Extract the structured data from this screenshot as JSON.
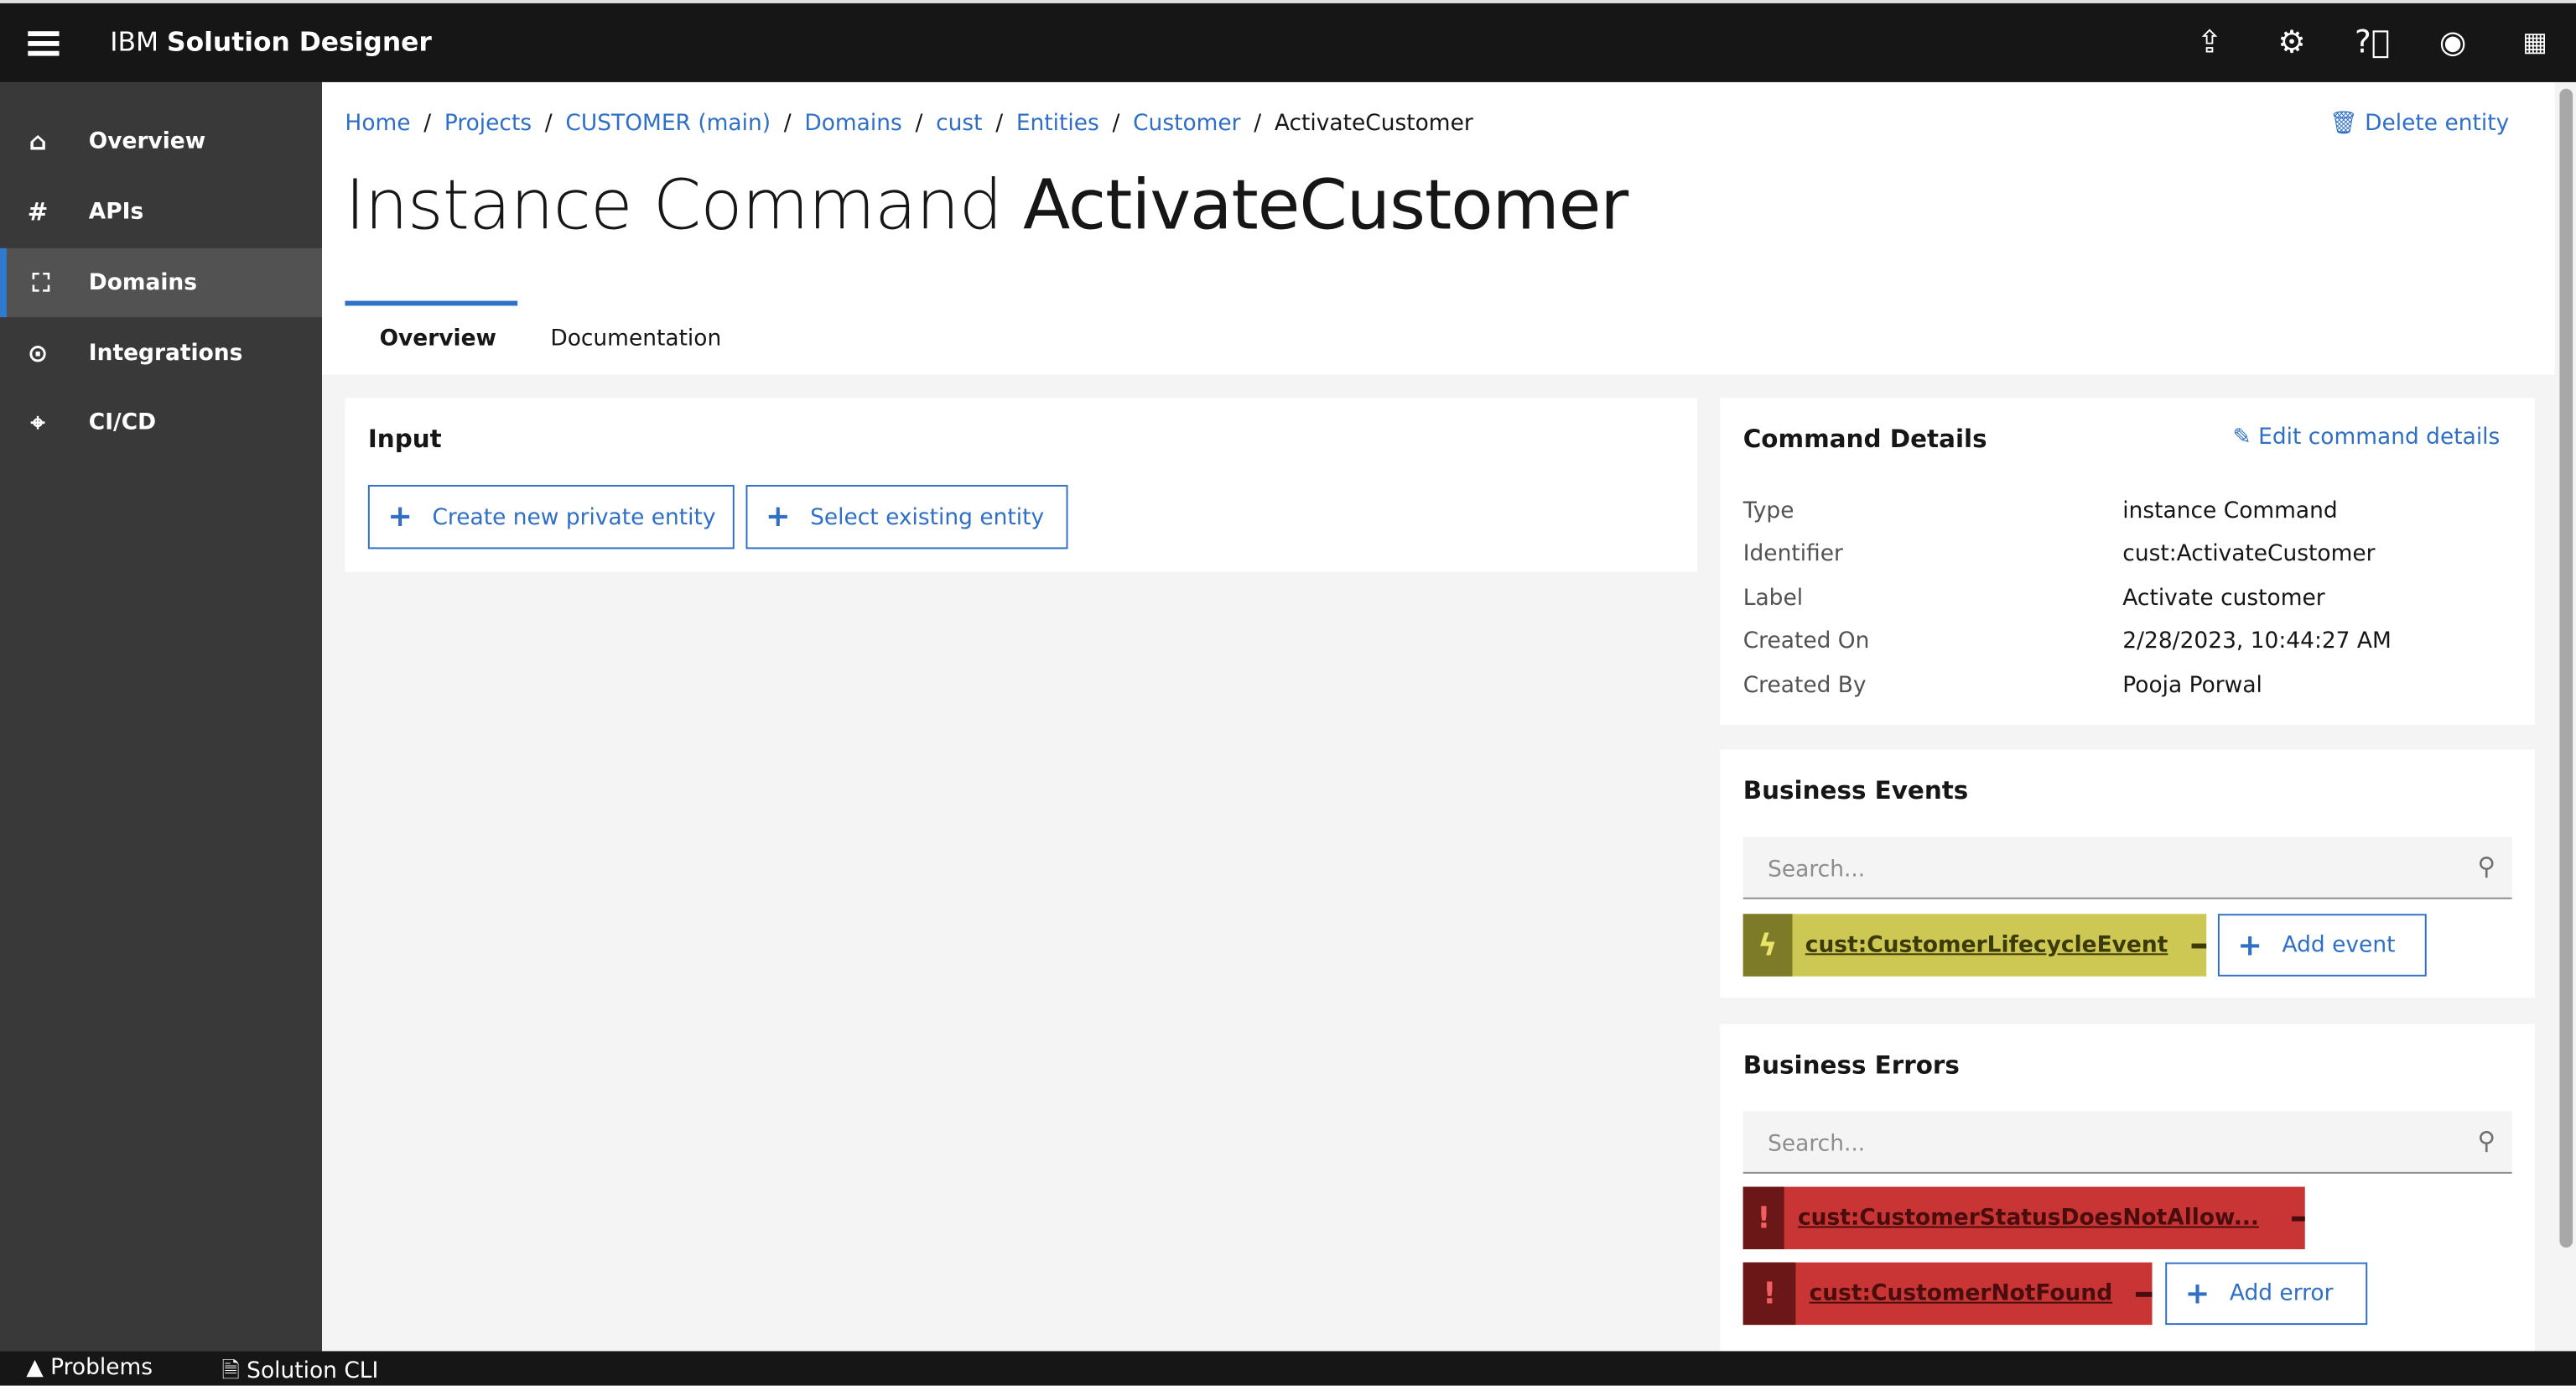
{
  "app": {
    "title_prefix": "IBM",
    "title_name": "Solution Designer"
  },
  "topbar_icons": [
    "export-icon",
    "settings-icon",
    "help-icon",
    "user-icon",
    "app-switcher-icon"
  ],
  "sidebar": {
    "items": [
      {
        "label": "Overview",
        "icon": "home-icon",
        "active": false
      },
      {
        "label": "APIs",
        "icon": "hash-icon",
        "active": false
      },
      {
        "label": "Domains",
        "icon": "brackets-icon",
        "active": true
      },
      {
        "label": "Integrations",
        "icon": "target-icon",
        "active": false
      },
      {
        "label": "CI/CD",
        "icon": "crosshair-icon",
        "active": false
      }
    ]
  },
  "breadcrumb": [
    "Home",
    "Projects",
    "CUSTOMER (main)",
    "Domains",
    "cust",
    "Entities",
    "Customer",
    "ActivateCustomer"
  ],
  "page": {
    "title_prefix": "Instance Command",
    "title_name": "ActivateCustomer",
    "delete_label": "Delete entity"
  },
  "tabs": [
    {
      "label": "Overview",
      "active": true
    },
    {
      "label": "Documentation",
      "active": false
    }
  ],
  "input": {
    "title": "Input",
    "create_label": "Create new private entity",
    "select_label": "Select existing entity"
  },
  "details": {
    "title": "Command Details",
    "edit_label": "Edit command details",
    "rows": [
      {
        "k": "Type",
        "v": "instance Command"
      },
      {
        "k": "Identifier",
        "v": "cust:ActivateCustomer"
      },
      {
        "k": "Label",
        "v": "Activate customer"
      },
      {
        "k": "Created On",
        "v": "2/28/2023, 10:44:27 AM"
      },
      {
        "k": "Created By",
        "v": "Pooja Porwal"
      }
    ]
  },
  "events": {
    "title": "Business Events",
    "search_placeholder": "Search...",
    "items": [
      "cust:CustomerLifecycleEvent"
    ],
    "add_label": "Add event",
    "color": "#cdc853",
    "icon_color": "#7d7a28"
  },
  "errors": {
    "title": "Business Errors",
    "search_placeholder": "Search...",
    "items": [
      "cust:CustomerStatusDoesNotAllow...",
      "cust:CustomerNotFound"
    ],
    "add_label": "Add error",
    "color": "#c93535",
    "icon_color": "#6b1717"
  },
  "footer": {
    "problems": "Problems",
    "cli": "Solution CLI"
  }
}
